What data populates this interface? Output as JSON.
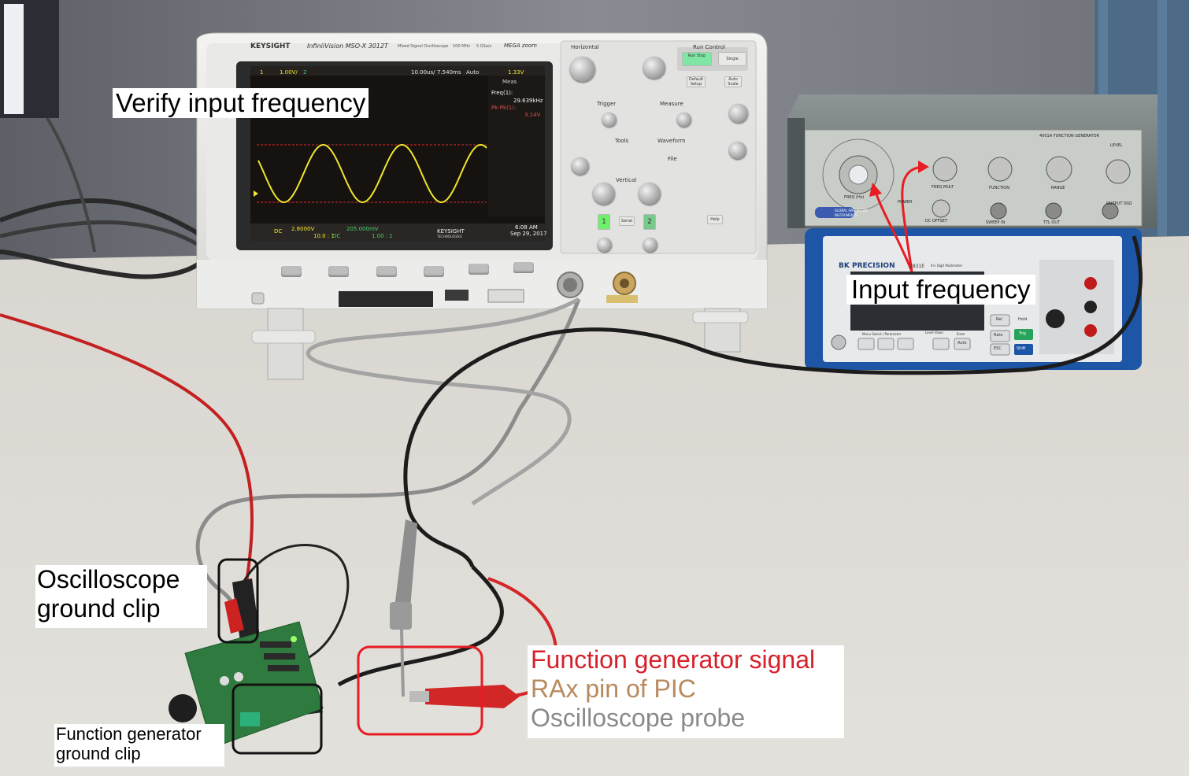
{
  "annotations": {
    "verify": "Verify input frequency",
    "input_freq": "Input frequency",
    "osc_ground_line1": "Oscilloscope",
    "osc_ground_line2": "ground clip",
    "fg_ground_line1": "Function generator",
    "fg_ground_line2": "ground clip",
    "legend_signal": "Function generator signal",
    "legend_rax": "RAx pin of PIC",
    "legend_probe": "Oscilloscope probe"
  },
  "oscilloscope": {
    "brand": "KEYSIGHT",
    "model": "InfiniiVision MSO-X 3012T",
    "subtitle": "Mixed Signal Oscilloscope",
    "bandwidth": "100 MHz",
    "sample_rate": "5 GSa/s",
    "megazoom": "MEGA zoom",
    "screen": {
      "ch1_scale": "1.00V/",
      "time_scale": "10.00us/",
      "delay": "7.540ms",
      "mode": "Auto",
      "trig_level": "1.33V",
      "meas_label": "Meas",
      "freq_label": "Freq(1):",
      "freq_value": "29.639kHz",
      "pkpk_label": "Pk-Pk(1):",
      "pkpk_value": "3.14V",
      "coupling": "DC",
      "ch1_offset": "2.8000V",
      "ch1_probe": "10.0 : 1",
      "ch2_coupling": "DC",
      "ch2_offset": "205.000mV",
      "ch2_probe": "1.00 : 1",
      "screen_brand": "KEYSIGHT",
      "screen_brand_sub": "TECHNOLOGIES",
      "clock": "6:08 AM",
      "date": "Sep 29, 2017"
    },
    "panel": {
      "horizontal": "Horizontal",
      "run_control": "Run Control",
      "run_stop": "Run Stop",
      "single": "Single",
      "trigger": "Trigger",
      "measure": "Measure",
      "tools": "Tools",
      "waveform": "Waveform",
      "file": "File",
      "vertical": "Vertical",
      "ch1": "1",
      "ch2": "2",
      "default_setup": "Default Setup",
      "auto_scale": "Auto Scale",
      "help": "Help",
      "serial": "Serial"
    }
  },
  "function_generator": {
    "title": "4001A FUNCTION GENERATOR",
    "freq_hz": "FREQ (Hz)",
    "freq_mult": "FREQ MULT",
    "function": "FUNCTION",
    "range": "RANGE",
    "level": "LEVEL",
    "dc_offset": "DC OFFSET",
    "sweep_in": "SWEEP IN",
    "ttl_out": "TTL OUT",
    "output": "OUTPUT 50Ω",
    "power": "POWER",
    "maker": "GLOBAL SPECIALTIES",
    "maker_sub": "INSTRUMENTS"
  },
  "multimeter": {
    "brand": "BK PRECISION",
    "model": "2831E",
    "subtitle": "4½ Digit Multimeter",
    "menu": "Menu Select / Parameter",
    "level": "Level Value",
    "enter": "Enter",
    "auto": "Auto",
    "esc": "ESC",
    "shift": "Shift",
    "rel": "Rel",
    "trig": "Trig",
    "rate": "Rate",
    "hold": "Hold"
  },
  "colors": {
    "annotation_red": "#e81c24",
    "legend_signal": "#d6212b",
    "legend_rax": "#b88a5e",
    "legend_probe": "#8a8a8a",
    "waveform": "#f0e62a",
    "screen_bg": "#1a1614",
    "pcb_green": "#2f7a3e"
  },
  "waveform": {
    "cycles_visible": 2.9
  }
}
